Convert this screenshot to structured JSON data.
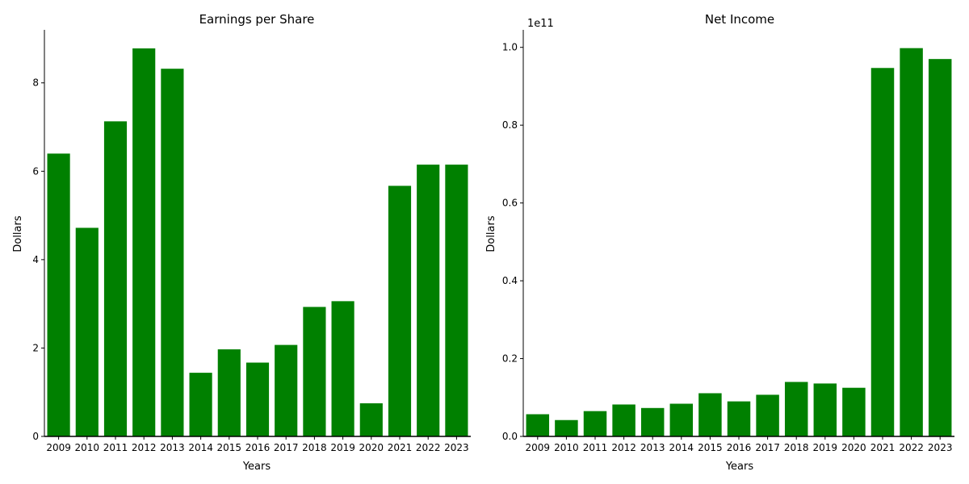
{
  "chart_data": [
    {
      "type": "bar",
      "title": "Earnings per Share",
      "xlabel": "Years",
      "ylabel": "Dollars",
      "categories": [
        "2009",
        "2010",
        "2011",
        "2012",
        "2013",
        "2014",
        "2015",
        "2016",
        "2017",
        "2018",
        "2019",
        "2020",
        "2021",
        "2022",
        "2023"
      ],
      "values": [
        6.4,
        4.72,
        7.13,
        8.78,
        8.32,
        1.44,
        1.97,
        1.67,
        2.07,
        2.93,
        3.06,
        0.75,
        5.67,
        6.15,
        6.15
      ],
      "ylim": [
        0,
        9.2
      ],
      "yticks": [
        0,
        2,
        4,
        6,
        8
      ],
      "ytick_labels": [
        "0",
        "2",
        "4",
        "6",
        "8"
      ],
      "offset_label": "",
      "bar_color": "#008000",
      "grid": false,
      "legend": "none"
    },
    {
      "type": "bar",
      "title": "Net Income",
      "xlabel": "Years",
      "ylabel": "Dollars",
      "categories": [
        "2009",
        "2010",
        "2011",
        "2012",
        "2013",
        "2014",
        "2015",
        "2016",
        "2017",
        "2018",
        "2019",
        "2020",
        "2021",
        "2022",
        "2023"
      ],
      "values": [
        5700000000.0,
        4200000000.0,
        6500000000.0,
        8200000000.0,
        7300000000.0,
        8400000000.0,
        11100000000.0,
        9000000000.0,
        10700000000.0,
        14000000000.0,
        13600000000.0,
        12500000000.0,
        94700000000.0,
        99800000000.0,
        97000000000.0
      ],
      "ylim": [
        0,
        104500000000.0
      ],
      "yticks": [
        0,
        20000000000.0,
        40000000000.0,
        60000000000.0,
        80000000000.0,
        100000000000.0
      ],
      "ytick_labels": [
        "0.0",
        "0.2",
        "0.4",
        "0.6",
        "0.8",
        "1.0"
      ],
      "offset_label": "1e11",
      "bar_color": "#008000",
      "grid": false,
      "legend": "none"
    }
  ]
}
